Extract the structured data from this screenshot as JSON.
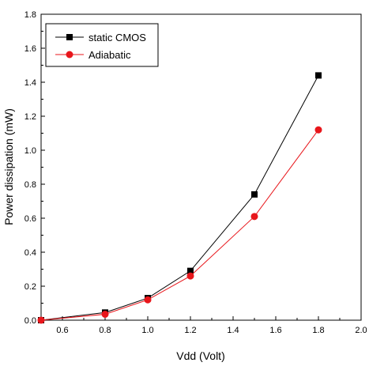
{
  "chart_data": {
    "type": "line",
    "title": "",
    "xlabel": "Vdd (Volt)",
    "ylabel": "Power dissipation (mW)",
    "xlim": [
      0.5,
      2.0
    ],
    "ylim": [
      0.0,
      1.8
    ],
    "xticks": [
      "0.6",
      "0.8",
      "1.0",
      "1.2",
      "1.4",
      "1.6",
      "1.8",
      "2.0"
    ],
    "yticks": [
      "0.0",
      "0.2",
      "0.4",
      "0.6",
      "0.8",
      "1.0",
      "1.2",
      "1.4",
      "1.6",
      "1.8"
    ],
    "grid": false,
    "legend_position": "top-left",
    "series": [
      {
        "name": "static CMOS",
        "color": "#000000",
        "marker": "square",
        "x": [
          0.5,
          0.8,
          1.0,
          1.2,
          1.5,
          1.8
        ],
        "y": [
          0.0,
          0.045,
          0.13,
          0.29,
          0.74,
          1.44
        ]
      },
      {
        "name": "Adiabatic",
        "color": "#e8161b",
        "marker": "circle",
        "x": [
          0.5,
          0.8,
          1.0,
          1.2,
          1.5,
          1.8
        ],
        "y": [
          0.0,
          0.035,
          0.12,
          0.26,
          0.61,
          1.12
        ]
      }
    ]
  }
}
